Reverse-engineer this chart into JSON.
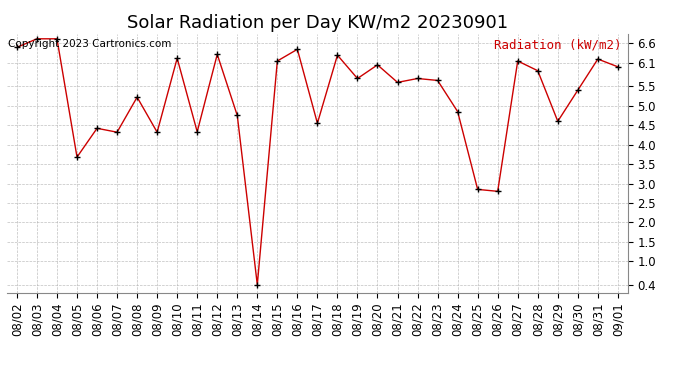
{
  "title": "Solar Radiation per Day KW/m2 20230901",
  "copyright_text": "Copyright 2023 Cartronics.com",
  "legend_text": "Radiation (kW/m2)",
  "dates": [
    "08/02",
    "08/03",
    "08/04",
    "08/05",
    "08/06",
    "08/07",
    "08/08",
    "08/09",
    "08/10",
    "08/11",
    "08/12",
    "08/13",
    "08/14",
    "08/15",
    "08/16",
    "08/17",
    "08/18",
    "08/19",
    "08/20",
    "08/21",
    "08/22",
    "08/23",
    "08/24",
    "08/25",
    "08/26",
    "08/27",
    "08/28",
    "08/29",
    "08/30",
    "08/31",
    "09/01"
  ],
  "values": [
    6.5,
    6.72,
    6.72,
    3.68,
    4.42,
    4.32,
    5.22,
    4.32,
    6.22,
    4.33,
    6.32,
    4.75,
    0.4,
    6.15,
    6.45,
    4.55,
    6.3,
    5.7,
    6.05,
    5.6,
    5.7,
    5.65,
    4.85,
    2.85,
    2.8,
    6.15,
    5.9,
    4.6,
    5.4,
    6.2,
    6.0
  ],
  "line_color": "#cc0000",
  "marker_color": "#000000",
  "background_color": "#ffffff",
  "grid_color": "#b0b0b0",
  "title_color": "#000000",
  "copyright_color": "#000000",
  "legend_color": "#cc0000",
  "ylim": [
    0.2,
    6.85
  ],
  "yticks": [
    0.4,
    1.0,
    1.5,
    2.0,
    2.5,
    3.0,
    3.5,
    4.0,
    4.5,
    5.0,
    5.5,
    6.1,
    6.6
  ],
  "ytick_labels": [
    "0.4",
    "1.0",
    "1.5",
    "2.0",
    "2.5",
    "3.0",
    "3.5",
    "4.0",
    "4.5",
    "5.0",
    "5.5",
    "6.1",
    "6.6"
  ],
  "title_fontsize": 13,
  "copyright_fontsize": 7.5,
  "legend_fontsize": 9,
  "tick_fontsize": 8.5
}
